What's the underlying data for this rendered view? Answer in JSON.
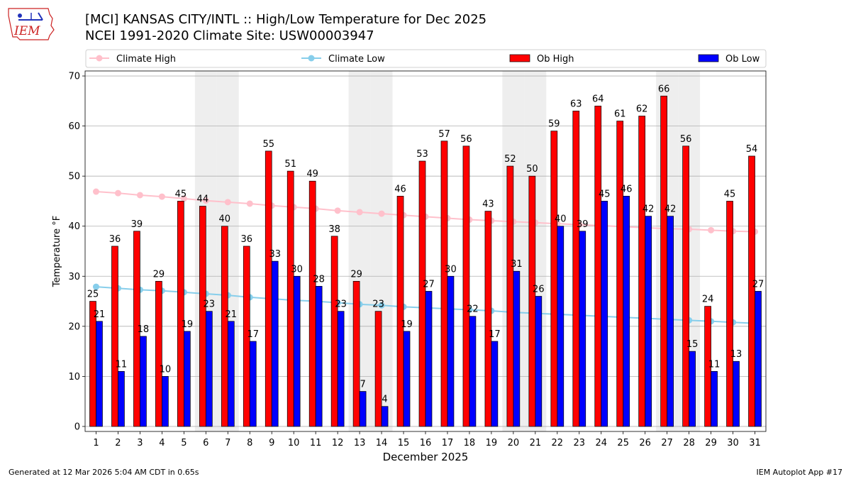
{
  "header": {
    "logo_text": "IEM",
    "title_line1": "[MCI] KANSAS CITY/INTL :: High/Low Temperature for Dec 2025",
    "title_line2": "NCEI 1991-2020 Climate Site: USW00003947"
  },
  "footer": {
    "generated": "Generated at 12 Mar 2026 5:04 AM CDT in 0.65s",
    "app": "IEM Autoplot App #17"
  },
  "colors": {
    "ob_high": "#ff0000",
    "ob_low": "#0000ff",
    "climate_high": "#ffc0cb",
    "climate_low": "#87ceeb",
    "weekend_band": "#eeeeee",
    "grid": "#b0b0b0"
  },
  "chart_data": {
    "type": "bar",
    "xlabel": "December 2025",
    "ylabel": "Temperature °F",
    "ylim": [
      -1,
      71
    ],
    "yticks": [
      0,
      10,
      20,
      30,
      40,
      50,
      60,
      70
    ],
    "grid": "y",
    "legend_placement": "top",
    "categories": [
      "1",
      "2",
      "3",
      "4",
      "5",
      "6",
      "7",
      "8",
      "9",
      "10",
      "11",
      "12",
      "13",
      "14",
      "15",
      "16",
      "17",
      "18",
      "19",
      "20",
      "21",
      "22",
      "23",
      "24",
      "25",
      "26",
      "27",
      "28",
      "29",
      "30",
      "31"
    ],
    "shaded_days": [
      6,
      7,
      13,
      14,
      20,
      21,
      27,
      28
    ],
    "series": [
      {
        "name": "Ob High",
        "kind": "bar",
        "values": [
          25,
          36,
          39,
          29,
          45,
          44,
          40,
          36,
          55,
          51,
          49,
          38,
          29,
          23,
          46,
          53,
          57,
          56,
          43,
          52,
          50,
          59,
          63,
          64,
          61,
          62,
          66,
          56,
          24,
          45,
          54
        ]
      },
      {
        "name": "Ob Low",
        "kind": "bar",
        "values": [
          21,
          11,
          18,
          10,
          19,
          23,
          21,
          17,
          33,
          30,
          28,
          23,
          7,
          4,
          19,
          27,
          30,
          22,
          17,
          31,
          26,
          40,
          39,
          45,
          46,
          42,
          42,
          15,
          11,
          13,
          27
        ]
      },
      {
        "name": "Climate High",
        "kind": "line",
        "values": [
          46.9,
          46.6,
          46.2,
          45.9,
          45.5,
          45.1,
          44.8,
          44.5,
          44.1,
          43.8,
          43.5,
          43.1,
          42.8,
          42.5,
          42.2,
          41.9,
          41.6,
          41.3,
          41.1,
          40.9,
          40.7,
          40.5,
          40.3,
          40.1,
          39.9,
          39.7,
          39.5,
          39.4,
          39.2,
          39.0,
          38.9
        ]
      },
      {
        "name": "Climate Low",
        "kind": "line",
        "values": [
          27.9,
          27.6,
          27.3,
          27.1,
          26.8,
          26.5,
          26.2,
          25.8,
          25.5,
          25.2,
          25.0,
          24.7,
          24.4,
          24.2,
          23.9,
          23.7,
          23.5,
          23.3,
          23.1,
          22.8,
          22.6,
          22.4,
          22.2,
          22.0,
          21.8,
          21.6,
          21.4,
          21.2,
          21.0,
          20.8,
          20.6
        ]
      }
    ]
  }
}
